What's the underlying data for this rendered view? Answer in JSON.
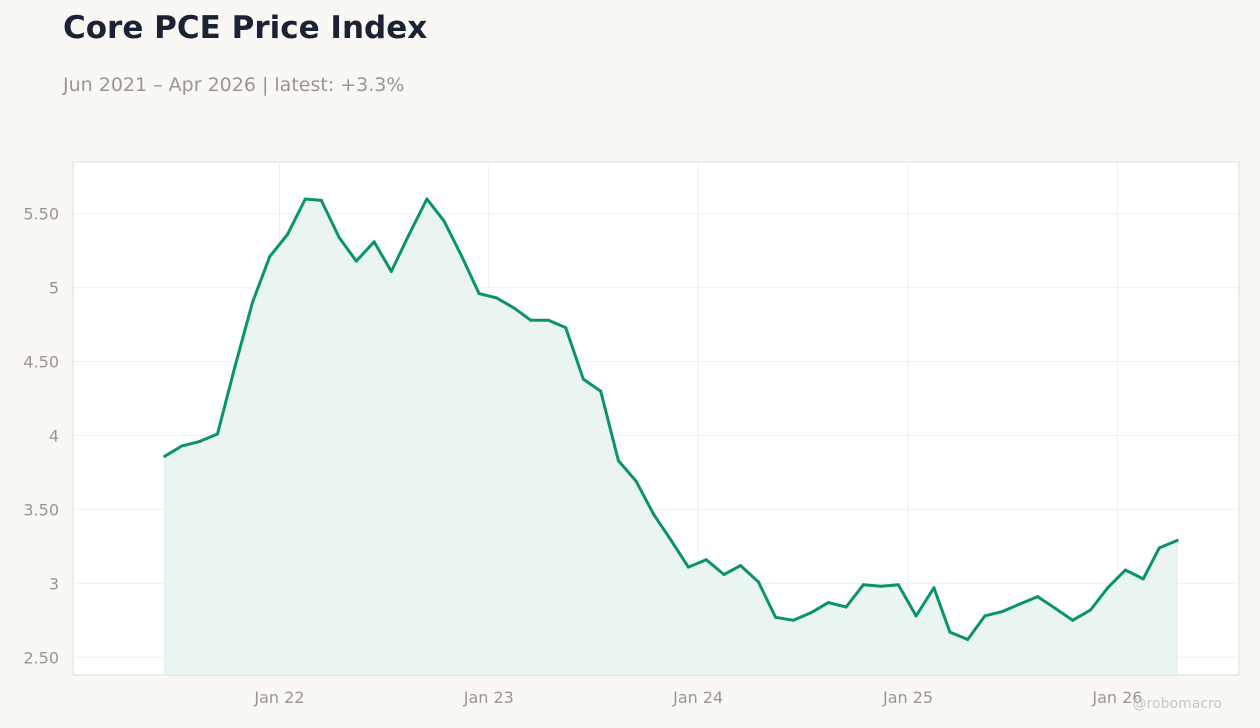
{
  "title": "Core PCE Price Index",
  "subtitle": "Jun 2021 – Apr 2026 | latest: +3.3%",
  "watermark": "@robomacro",
  "colors": {
    "line": "#0b9467",
    "fill": "#eaf5f0",
    "title": "#1b2233",
    "muted": "#999690",
    "grid": "#efefef",
    "frame": "#dcdcd8",
    "background": "#f9f8f5",
    "plot_background": "#ffffff"
  },
  "chart_data": {
    "type": "area",
    "title": "Core PCE Price Index",
    "xlabel": "",
    "ylabel": "",
    "ylim": [
      2.38,
      5.85
    ],
    "xlim": [
      "2021-01-06",
      "2026-08-01"
    ],
    "grid": true,
    "legend": "none",
    "yticks": [
      {
        "value": 2.5,
        "label": "2.50"
      },
      {
        "value": 3.0,
        "label": "3"
      },
      {
        "value": 3.5,
        "label": "3.50"
      },
      {
        "value": 4.0,
        "label": "4"
      },
      {
        "value": 4.5,
        "label": "4.50"
      },
      {
        "value": 5.0,
        "label": "5"
      },
      {
        "value": 5.5,
        "label": "5.50"
      }
    ],
    "xticks": [
      {
        "value": "2022-01-01",
        "label": "Jan 22"
      },
      {
        "value": "2023-01-01",
        "label": "Jan 23"
      },
      {
        "value": "2024-01-01",
        "label": "Jan 24"
      },
      {
        "value": "2025-01-01",
        "label": "Jan 25"
      },
      {
        "value": "2026-01-01",
        "label": "Jan 26"
      }
    ],
    "series": [
      {
        "x": [
          "2021-06",
          "2021-07",
          "2021-08",
          "2021-09",
          "2021-10",
          "2021-11",
          "2021-12",
          "2022-01",
          "2022-02",
          "2022-03",
          "2022-04",
          "2022-05",
          "2022-06",
          "2022-07",
          "2022-08",
          "2022-09",
          "2022-10",
          "2022-11",
          "2022-12",
          "2023-01",
          "2023-02",
          "2023-03",
          "2023-04",
          "2023-05",
          "2023-06",
          "2023-07",
          "2023-08",
          "2023-09",
          "2023-10",
          "2023-11",
          "2023-12",
          "2024-01",
          "2024-02",
          "2024-03",
          "2024-04",
          "2024-05",
          "2024-06",
          "2024-07",
          "2024-08",
          "2024-09",
          "2024-10",
          "2024-11",
          "2024-12",
          "2025-01",
          "2025-02",
          "2025-03",
          "2025-04",
          "2025-05",
          "2025-06",
          "2025-07",
          "2025-08",
          "2025-09",
          "2025-10",
          "2025-11",
          "2025-12",
          "2026-01",
          "2026-02",
          "2026-03",
          "2026-04"
        ],
        "values": [
          3.86,
          3.93,
          3.96,
          4.01,
          4.46,
          4.9,
          5.21,
          5.36,
          5.6,
          5.59,
          5.34,
          5.18,
          5.31,
          5.11,
          5.36,
          5.6,
          5.45,
          5.21,
          4.96,
          4.93,
          4.86,
          4.78,
          4.78,
          4.73,
          4.38,
          4.3,
          3.83,
          3.69,
          3.47,
          3.29,
          3.11,
          3.16,
          3.06,
          3.12,
          3.01,
          2.77,
          2.75,
          2.8,
          2.87,
          2.84,
          2.99,
          2.98,
          2.99,
          2.78,
          2.97,
          2.67,
          2.62,
          2.78,
          2.81,
          2.86,
          2.91,
          2.83,
          2.75,
          2.82,
          2.97,
          3.09,
          3.03,
          3.24,
          3.29
        ]
      }
    ]
  }
}
